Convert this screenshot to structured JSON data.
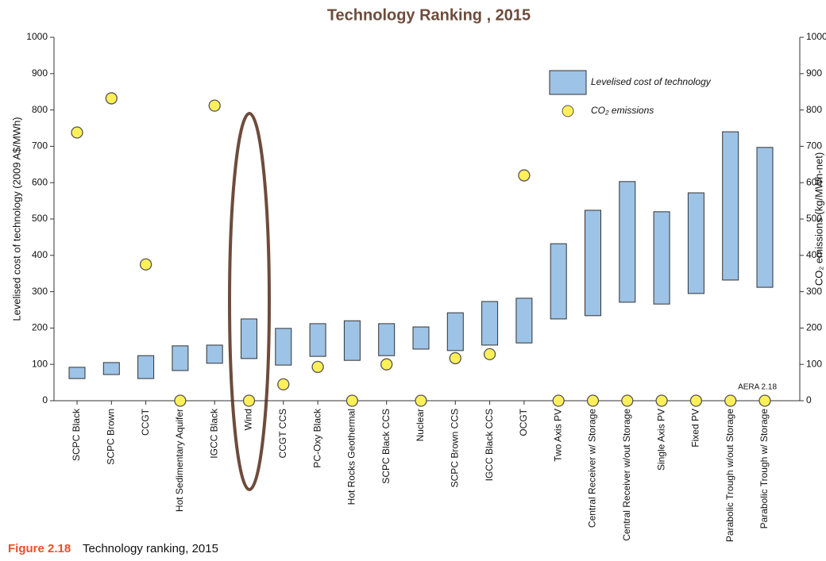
{
  "chart_data": {
    "type": "bar",
    "title": "Technology Ranking , 2015",
    "ylabel": "Levelised cost of technology (2009 A$/MWh)",
    "y2label": "CO₂ emissions (kg/MWh-net)",
    "annotation": "AERA 2.18",
    "caption": {
      "label": "Figure 2.18",
      "text": "Technology ranking, 2015"
    },
    "categories": [
      "SCPC Black",
      "SCPC Brown",
      "CCGT",
      "Hot Sedimentary Aquifer",
      "IGCC Black",
      "Wind",
      "CCGT CCS",
      "PC-Oxy Black",
      "Hot Rocks Geothermal",
      "SCPC Black CCS",
      "Nuclear",
      "SCPC Brown CCS",
      "IGCC Black CCS",
      "OCGT",
      "Two Axis PV",
      "Central Receiver w/ Storage",
      "Central Receiver w/out Storage",
      "Single Axis PV",
      "Fixed PV",
      "Parabolic Trough w/out Storage",
      "Parabolic Trough w/ Storage"
    ],
    "series": [
      {
        "name": "Levelised cost of technology",
        "type": "range",
        "color": "#9dc3e6",
        "values": [
          [
            61,
            92
          ],
          [
            72,
            105
          ],
          [
            61,
            124
          ],
          [
            83,
            151
          ],
          [
            103,
            153
          ],
          [
            116,
            225
          ],
          [
            98,
            199
          ],
          [
            122,
            212
          ],
          [
            111,
            220
          ],
          [
            124,
            212
          ],
          [
            142,
            203
          ],
          [
            138,
            242
          ],
          [
            153,
            273
          ],
          [
            159,
            282
          ],
          [
            225,
            432
          ],
          [
            234,
            524
          ],
          [
            271,
            603
          ],
          [
            266,
            520
          ],
          [
            295,
            572
          ],
          [
            332,
            740
          ],
          [
            312,
            697
          ]
        ]
      },
      {
        "name": "CO₂ emissions",
        "type": "scatter",
        "axis": "y2",
        "color": "#fff05a",
        "values": [
          738,
          832,
          375,
          0,
          812,
          0,
          45,
          93,
          0,
          100,
          0,
          117,
          128,
          620,
          0,
          0,
          0,
          0,
          0,
          0,
          0
        ]
      }
    ],
    "ylim": [
      0,
      1000
    ],
    "yticks": [
      0,
      100,
      200,
      300,
      400,
      500,
      600,
      700,
      800,
      900,
      1000
    ],
    "y2lim": [
      0,
      1000
    ],
    "y2ticks": [
      0,
      100,
      200,
      300,
      400,
      500,
      600,
      700,
      800,
      900,
      1000
    ],
    "legend": "upper right"
  }
}
